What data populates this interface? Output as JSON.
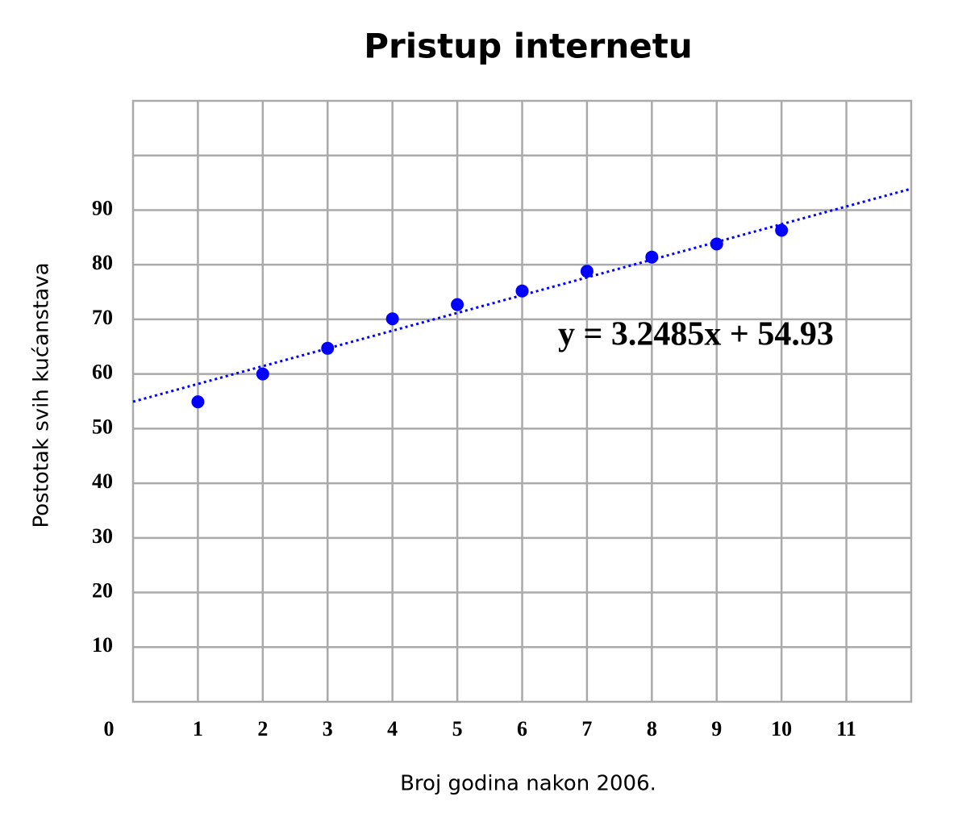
{
  "chart_data": {
    "type": "scatter",
    "title": "Pristup internetu",
    "x_label": "Broj godina nakon 2006.",
    "y_label": "Postotak svih kućanstava",
    "x": [
      1,
      2,
      3,
      4,
      5,
      6,
      7,
      8,
      9,
      10
    ],
    "series": [
      {
        "color": "#0000ff",
        "values": [
          54.9,
          60,
          64.7,
          70.1,
          72.7,
          75.2,
          78.8,
          81.4,
          83.8,
          86.3
        ]
      }
    ],
    "trendline": {
      "slope": 3.2485,
      "intercept": 54.93,
      "color": "#0000ff",
      "label": "y = 3.2485x + 54.93"
    },
    "xlim": [
      0,
      12
    ],
    "ylim": [
      0,
      110
    ],
    "xticks": [
      0,
      1,
      2,
      3,
      4,
      5,
      6,
      7,
      8,
      9,
      10,
      11
    ],
    "yticks": [
      10,
      20,
      30,
      40,
      50,
      60,
      70,
      80,
      90
    ],
    "grid": true
  }
}
